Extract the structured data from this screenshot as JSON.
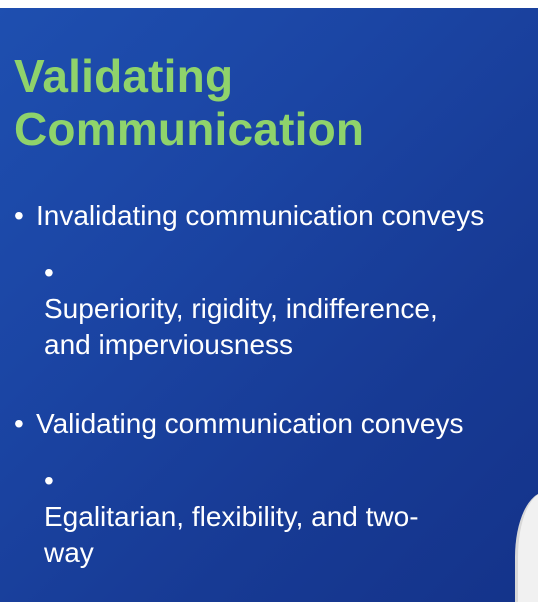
{
  "slide": {
    "title_line1": "Validating",
    "title_line2": "Communication",
    "bullet_char": "•",
    "bullets": [
      {
        "text": "Invalidating communication conveys",
        "sub": "Superiority, rigidity, indifference, and imperviousness"
      },
      {
        "text": "Validating communication conveys",
        "sub": "Egalitarian, flexibility, and two-way"
      }
    ]
  }
}
